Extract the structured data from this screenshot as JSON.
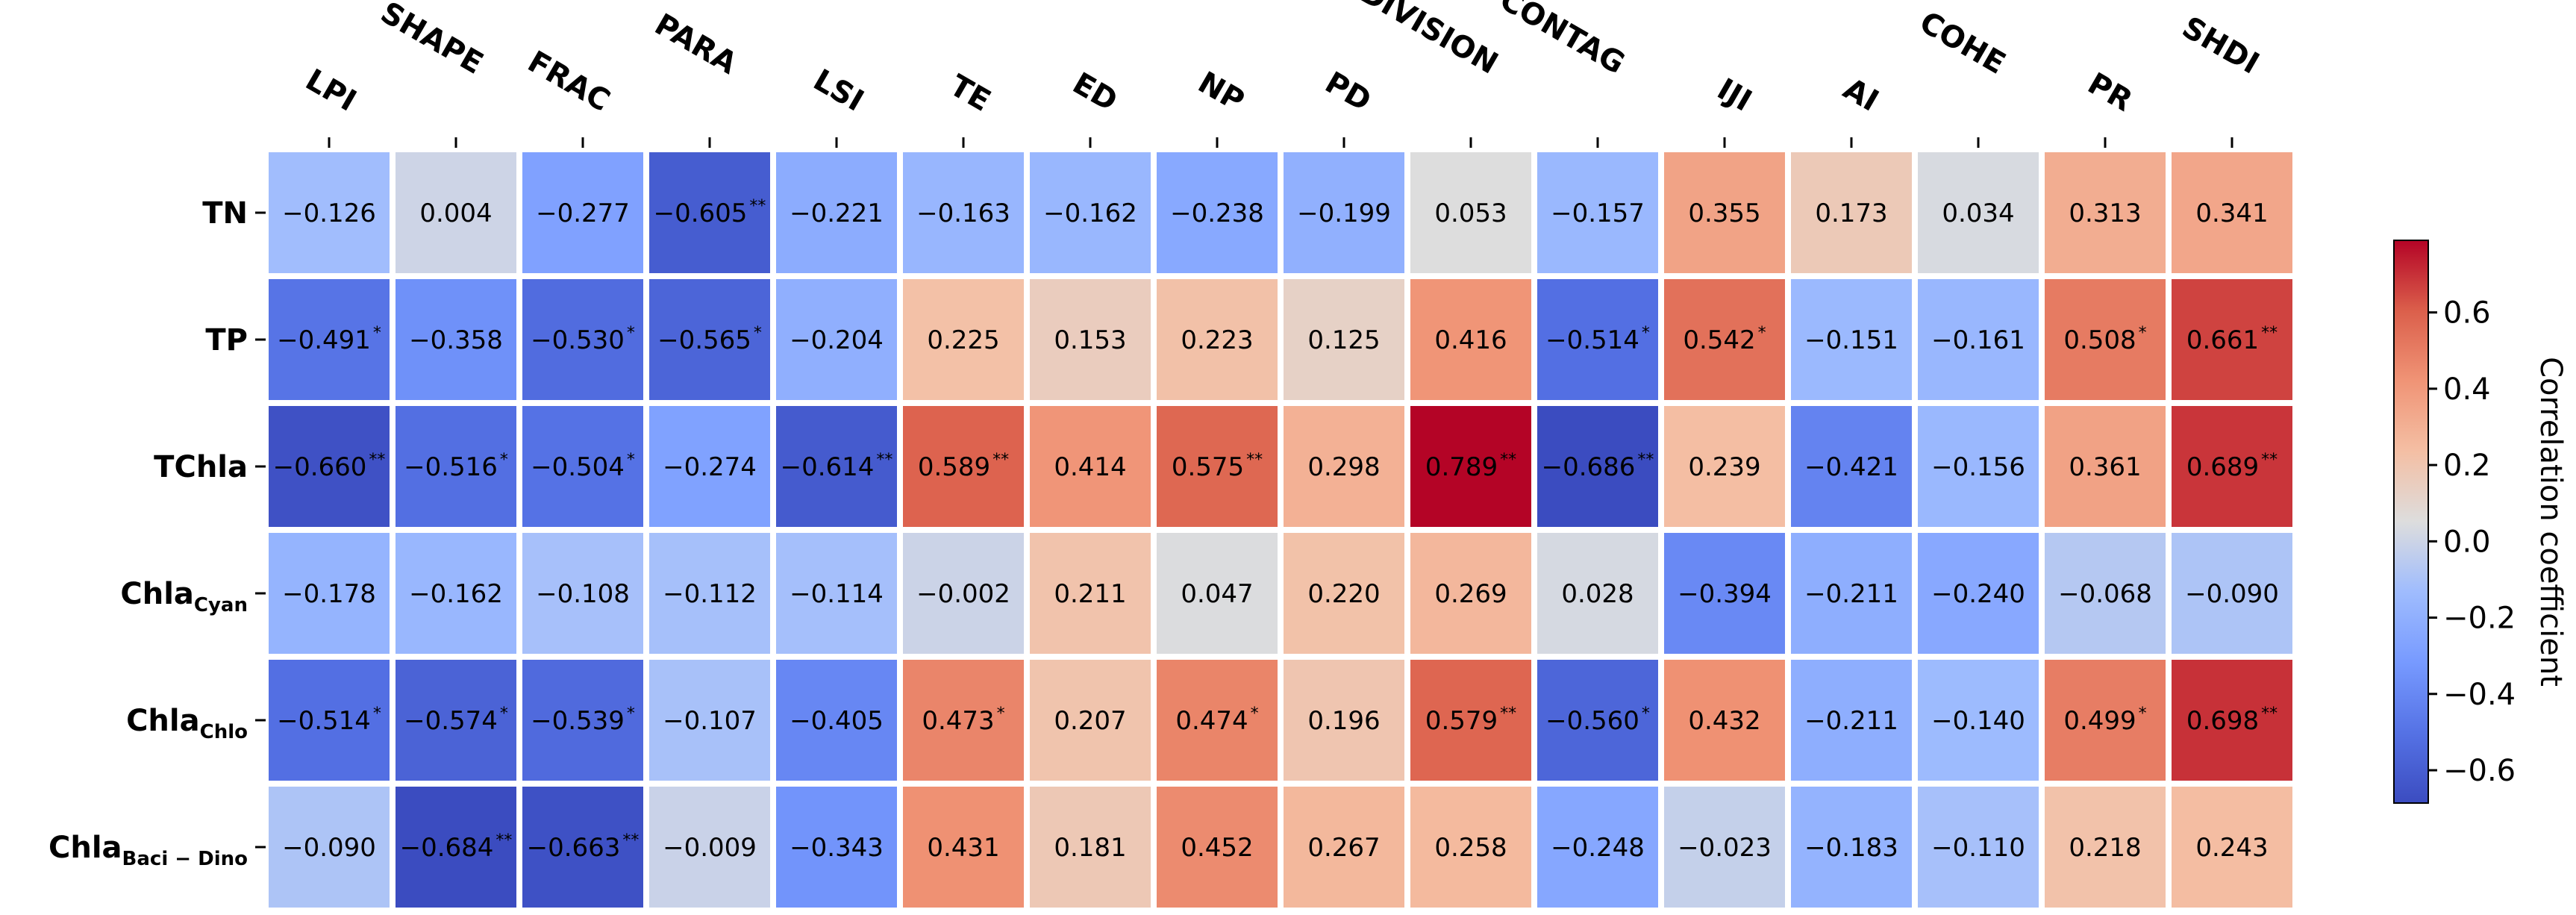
{
  "chart_data": {
    "type": "heatmap",
    "columns": [
      "LPI",
      "SHAPE",
      "FRAC",
      "PARA",
      "LSI",
      "TE",
      "ED",
      "NP",
      "PD",
      "DIVISION",
      "CONTAG",
      "IJI",
      "AI",
      "COHE",
      "PR",
      "SHDI"
    ],
    "rows": [
      {
        "name": "TN",
        "base": "TN",
        "sub": ""
      },
      {
        "name": "TP",
        "base": "TP",
        "sub": ""
      },
      {
        "name": "TChla",
        "base": "TChla",
        "sub": ""
      },
      {
        "name": "ChlaCyan",
        "base": "Chla",
        "sub": "Cyan"
      },
      {
        "name": "ChlaChlo",
        "base": "Chla",
        "sub": "Chlo"
      },
      {
        "name": "ChlaBaci−Dino",
        "base": "Chla",
        "sub": "Baci − Dino"
      }
    ],
    "values": [
      [
        -0.126,
        0.004,
        -0.277,
        -0.605,
        -0.221,
        -0.163,
        -0.162,
        -0.238,
        -0.199,
        0.053,
        -0.157,
        0.355,
        0.173,
        0.034,
        0.313,
        0.341
      ],
      [
        -0.491,
        -0.358,
        -0.53,
        -0.565,
        -0.204,
        0.225,
        0.153,
        0.223,
        0.125,
        0.416,
        -0.514,
        0.542,
        -0.151,
        -0.161,
        0.508,
        0.661
      ],
      [
        -0.66,
        -0.516,
        -0.504,
        -0.274,
        -0.614,
        0.589,
        0.414,
        0.575,
        0.298,
        0.789,
        -0.686,
        0.239,
        -0.421,
        -0.156,
        0.361,
        0.689
      ],
      [
        -0.178,
        -0.162,
        -0.108,
        -0.112,
        -0.114,
        -0.002,
        0.211,
        0.047,
        0.22,
        0.269,
        0.028,
        -0.394,
        -0.211,
        -0.24,
        -0.068,
        -0.09
      ],
      [
        -0.514,
        -0.574,
        -0.539,
        -0.107,
        -0.405,
        0.473,
        0.207,
        0.474,
        0.196,
        0.579,
        -0.56,
        0.432,
        -0.211,
        -0.14,
        0.499,
        0.698
      ],
      [
        -0.09,
        -0.684,
        -0.663,
        -0.009,
        -0.343,
        0.431,
        0.181,
        0.452,
        0.267,
        0.258,
        -0.248,
        -0.023,
        -0.183,
        -0.11,
        0.218,
        0.243
      ]
    ],
    "labels": [
      [
        "−0.126",
        "0.004",
        "−0.277",
        "−0.605",
        "−0.221",
        "−0.163",
        "−0.162",
        "−0.238",
        "−0.199",
        "0.053",
        "−0.157",
        "0.355",
        "0.173",
        "0.034",
        "0.313",
        "0.341"
      ],
      [
        "−0.491",
        "−0.358",
        "−0.530",
        "−0.565",
        "−0.204",
        "0.225",
        "0.153",
        "0.223",
        "0.125",
        "0.416",
        "−0.514",
        "0.542",
        "−0.151",
        "−0.161",
        "0.508",
        "0.661"
      ],
      [
        "−0.660",
        "−0.516",
        "−0.504",
        "−0.274",
        "−0.614",
        "0.589",
        "0.414",
        "0.575",
        "0.298",
        "0.789",
        "−0.686",
        "0.239",
        "−0.421",
        "−0.156",
        "0.361",
        "0.689"
      ],
      [
        "−0.178",
        "−0.162",
        "−0.108",
        "−0.112",
        "−0.114",
        "−0.002",
        "0.211",
        "0.047",
        "0.220",
        "0.269",
        "0.028",
        "−0.394",
        "−0.211",
        "−0.240",
        "−0.068",
        "−0.090"
      ],
      [
        "−0.514",
        "−0.574",
        "−0.539",
        "−0.107",
        "−0.405",
        "0.473",
        "0.207",
        "0.474",
        "0.196",
        "0.579",
        "−0.560",
        "0.432",
        "−0.211",
        "−0.140",
        "0.499",
        "0.698"
      ],
      [
        "−0.090",
        "−0.684",
        "−0.663",
        "−0.009",
        "−0.343",
        "0.431",
        "0.181",
        "0.452",
        "0.267",
        "0.258",
        "−0.248",
        "−0.023",
        "−0.183",
        "−0.110",
        "0.218",
        "0.243"
      ]
    ],
    "significance": [
      [
        "",
        "",
        "",
        "**",
        "",
        "",
        "",
        "",
        "",
        "",
        "",
        "",
        "",
        "",
        "",
        ""
      ],
      [
        "*",
        "",
        "*",
        "*",
        "",
        "",
        "",
        "",
        "",
        "",
        "*",
        "*",
        "",
        "",
        "*",
        "**"
      ],
      [
        "**",
        "*",
        "*",
        "",
        "**",
        "**",
        "",
        "**",
        "",
        "**",
        "**",
        "",
        "",
        "",
        "",
        "**"
      ],
      [
        "",
        "",
        "",
        "",
        "",
        "",
        "",
        "",
        "",
        "",
        "",
        "",
        "",
        "",
        "",
        ""
      ],
      [
        "*",
        "*",
        "*",
        "",
        "",
        "*",
        "",
        "*",
        "",
        "**",
        "*",
        "",
        "",
        "",
        "*",
        "**"
      ],
      [
        "",
        "**",
        "**",
        "",
        "",
        "",
        "",
        "",
        "",
        "",
        "",
        "",
        "",
        "",
        "",
        ""
      ]
    ],
    "colorbar": {
      "label": "Correlation coefficient",
      "range": [
        -0.686,
        0.789
      ],
      "ticks": [
        -0.6,
        -0.4,
        -0.2,
        0.0,
        0.2,
        0.4,
        0.6
      ],
      "tick_labels": [
        "−0.6",
        "−0.4",
        "−0.2",
        "0.0",
        "0.2",
        "0.4",
        "0.6"
      ],
      "colormap": "coolwarm"
    },
    "colors": {
      "low": "#3b4cc0",
      "mid": "#dddddd",
      "high": "#b40426",
      "cell_border": "#ffffff"
    }
  }
}
